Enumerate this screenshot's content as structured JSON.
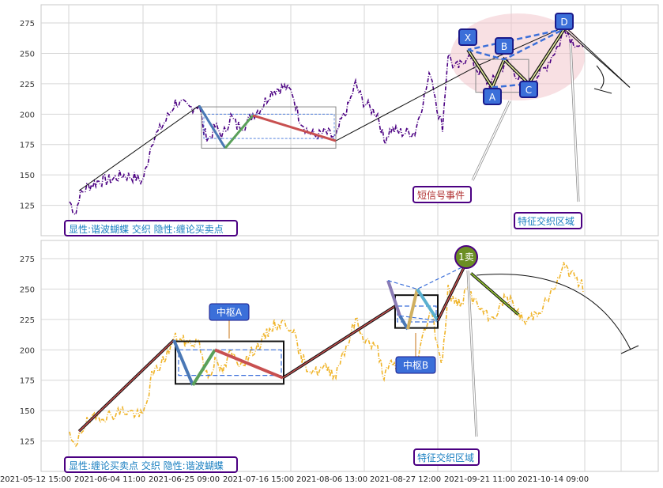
{
  "chart_data": [
    {
      "type": "line",
      "panel": "top",
      "title": "",
      "ylim": [
        100,
        290
      ],
      "yticks": [
        125,
        150,
        175,
        200,
        225,
        250,
        275
      ],
      "grid": true,
      "legend_text": "显性:谐波蝴蝶 交织 隐性:缠论买卖点",
      "labels": {
        "short_signal": "短信号事件",
        "feature_zone": "特征交织区域",
        "harmonic_points": [
          "X",
          "A",
          "B",
          "C",
          "D"
        ]
      },
      "harmonic_values": {
        "X": 253,
        "A": 222,
        "B": 245,
        "C": 225,
        "D": 270
      },
      "price_color": "#4b0082"
    },
    {
      "type": "line",
      "panel": "bottom",
      "title": "",
      "ylim": [
        100,
        290
      ],
      "yticks": [
        125,
        150,
        175,
        200,
        225,
        250,
        275
      ],
      "grid": true,
      "legend_text": "显性:缠论买卖点 交织 隐性:谐波蝴蝶",
      "labels": {
        "pivot_a": "中枢A",
        "pivot_b": "中枢B",
        "feature_zone": "特征交织区域",
        "sell_point": "1卖"
      },
      "price_color": "#f0b429"
    }
  ],
  "x_axis": {
    "tick_labels": [
      "2021-05-12 15:00",
      "2021-06-04 11:00",
      "2021-06-25 09:00",
      "2021-07-16 15:00",
      "2021-08-06 13:00",
      "2021-08-27 12:00",
      "2021-09-21 11:00",
      "2021-10-14 09:00"
    ]
  }
}
